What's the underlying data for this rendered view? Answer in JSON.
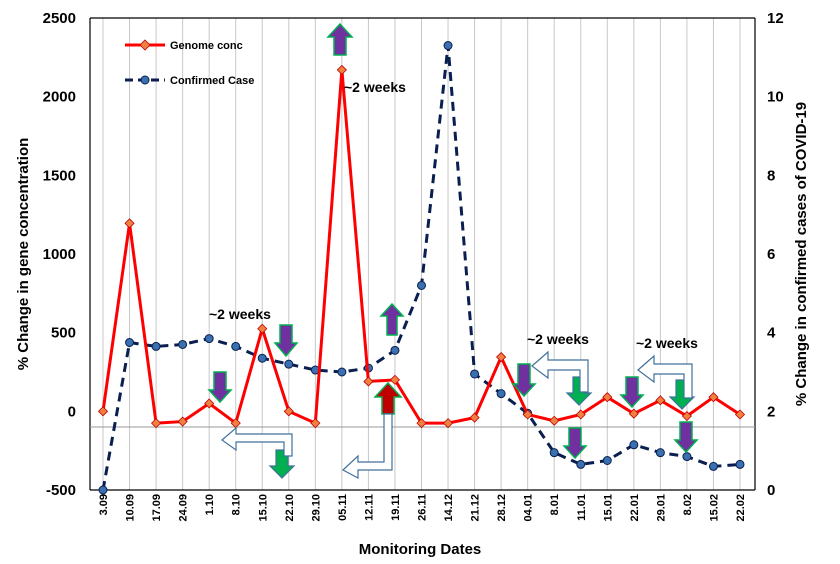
{
  "chart_data": {
    "type": "line",
    "xlabel": "Monitoring Dates",
    "ylabel_left": "% Change in gene concentration",
    "ylabel_right": "% Change in confirmed cases of COVID-19",
    "categories": [
      "3.09",
      "10.09",
      "17.09",
      "24.09",
      "1.10",
      "8.10",
      "15.10",
      "22.10",
      "29.10",
      "05.11",
      "12.11",
      "19.11",
      "26.11",
      "14.12",
      "21.12",
      "28.12",
      "04.01",
      "8.01",
      "11.01",
      "15.01",
      "22.01",
      "29.01",
      "8.02",
      "15.02",
      "22.02"
    ],
    "ylim_left": [
      -500,
      2500
    ],
    "yticks_left": [
      "-500",
      "0",
      "500",
      "1000",
      "1500",
      "2000",
      "2500"
    ],
    "ylim_right": [
      0,
      12
    ],
    "yticks_right": [
      "0",
      "2",
      "4",
      "6",
      "8",
      "10",
      "12"
    ],
    "grid": "vertical lines at each date",
    "legend_position": "top-left",
    "series": [
      {
        "name": "Genome conc",
        "axis": "left",
        "color": "#ff0000",
        "marker": "diamond",
        "marker_color": "#f08040",
        "style": "solid",
        "values": [
          0,
          1195,
          -75,
          -65,
          50,
          -75,
          525,
          0,
          -75,
          2170,
          190,
          200,
          -75,
          -75,
          -40,
          345,
          -20,
          -60,
          -20,
          90,
          -15,
          70,
          -30,
          90,
          -20
        ]
      },
      {
        "name": "Confirmed Case",
        "axis": "right",
        "color": "#0a1f4f",
        "marker": "circle",
        "marker_color": "#3a6fb0",
        "style": "dashed",
        "values": [
          0.0,
          3.75,
          3.65,
          3.7,
          3.85,
          3.65,
          3.35,
          3.2,
          3.05,
          3.0,
          3.1,
          3.55,
          5.2,
          11.3,
          2.95,
          2.45,
          1.95,
          0.95,
          0.65,
          0.75,
          1.15,
          0.95,
          0.85,
          0.6,
          0.65
        ]
      }
    ],
    "annotations": [
      {
        "text": "~2 weeks",
        "near": "15.10"
      },
      {
        "text": "~2 weeks",
        "near": "05.11"
      },
      {
        "text": "~2 weeks",
        "near": "04.01"
      },
      {
        "text": "~2 weeks",
        "near": "22.01"
      }
    ]
  },
  "colors": {
    "arrow_purple": "#7030a0",
    "arrow_green": "#00b050",
    "arrow_red": "#c00000",
    "outline_arrow": "#41719c"
  },
  "icons": [
    "up-arrow-purple",
    "down-arrow-purple",
    "down-arrow-green",
    "up-arrow-red",
    "left-hook-arrow"
  ]
}
